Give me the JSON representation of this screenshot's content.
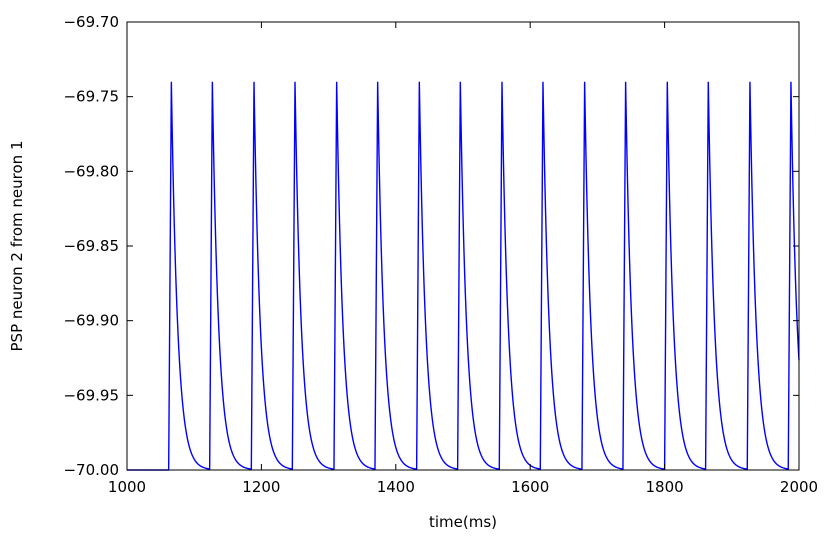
{
  "chart_data": {
    "type": "line",
    "title": "",
    "xlabel": "time(ms)",
    "ylabel": "PSP neuron 2 from neuron 1",
    "xlim": [
      1000,
      2000
    ],
    "ylim": [
      -70.0,
      -69.7
    ],
    "xticks": [
      1000,
      1200,
      1400,
      1600,
      1800,
      2000
    ],
    "yticks": [
      -69.7,
      -69.75,
      -69.8,
      -69.85,
      -69.9,
      -69.95,
      -70.0
    ],
    "xtick_labels": [
      "1000",
      "1200",
      "1400",
      "1600",
      "1800",
      "2000"
    ],
    "ytick_labels": [
      "−69.70",
      "−69.75",
      "−69.80",
      "−69.85",
      "−69.90",
      "−69.95",
      "−70.00"
    ],
    "grid": false,
    "line_color": "#0000ff",
    "series": [
      {
        "baseline": -70.0,
        "peak": -69.74,
        "first_spike_time": 1062,
        "spike_times": [
          1062,
          1123,
          1185,
          1246,
          1308,
          1369,
          1431,
          1492,
          1554,
          1615,
          1677,
          1738,
          1800,
          1861,
          1923,
          1984
        ],
        "rise_ms": 4,
        "decay_tau_ms": 9.5
      }
    ]
  }
}
